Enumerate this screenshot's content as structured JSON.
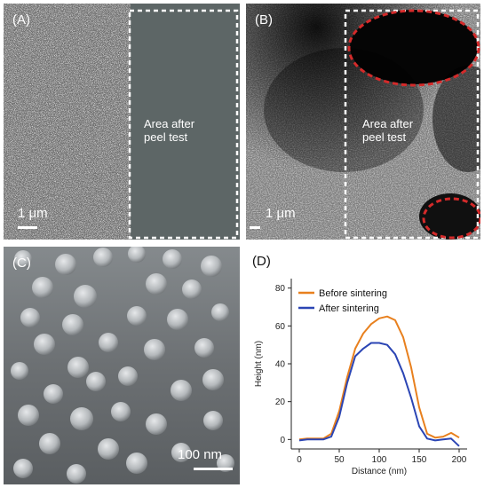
{
  "panels": {
    "A": {
      "letter": "(A)",
      "region_label_line1": "Area after",
      "region_label_line2": "peel test",
      "scale_label": "1 μm"
    },
    "B": {
      "letter": "(B)",
      "region_label_line1": "Area after",
      "region_label_line2": "peel test",
      "scale_label": "1 μm"
    },
    "C": {
      "letter": "(C)",
      "scale_label": "100 nm"
    },
    "D": {
      "letter": "(D)"
    }
  },
  "colors": {
    "before": "#e8801e",
    "after": "#2b45b4",
    "dashed_box": "#ffffff",
    "dashed_ellipse": "#d42a2a"
  },
  "chart_data": {
    "type": "line",
    "xlabel": "Distance (nm)",
    "ylabel": "Height (nm)",
    "xlim": [
      -10,
      210
    ],
    "ylim": [
      -5,
      85
    ],
    "xticks": [
      0,
      50,
      100,
      150,
      200
    ],
    "yticks": [
      0,
      20,
      40,
      60,
      80
    ],
    "legend_position": "top-left",
    "series": [
      {
        "name": "Before sintering",
        "color": "#e8801e",
        "x": [
          0,
          10,
          20,
          30,
          40,
          50,
          60,
          70,
          80,
          90,
          100,
          110,
          120,
          130,
          140,
          150,
          160,
          170,
          180,
          190,
          200
        ],
        "y": [
          0,
          0.5,
          0.5,
          0.5,
          3,
          15,
          33,
          48,
          56,
          61,
          64,
          65,
          63,
          54,
          38,
          17,
          3,
          1,
          1.5,
          3.5,
          1
        ]
      },
      {
        "name": "After sintering",
        "color": "#2b45b4",
        "x": [
          0,
          10,
          20,
          30,
          40,
          50,
          60,
          70,
          80,
          90,
          100,
          110,
          120,
          130,
          140,
          150,
          160,
          170,
          180,
          190,
          200
        ],
        "y": [
          -0.5,
          0,
          0,
          0,
          1.5,
          12,
          30,
          44,
          48,
          51,
          51,
          50,
          45,
          35,
          22,
          7,
          0.5,
          -0.5,
          0,
          0.5,
          -3.5
        ]
      }
    ]
  }
}
